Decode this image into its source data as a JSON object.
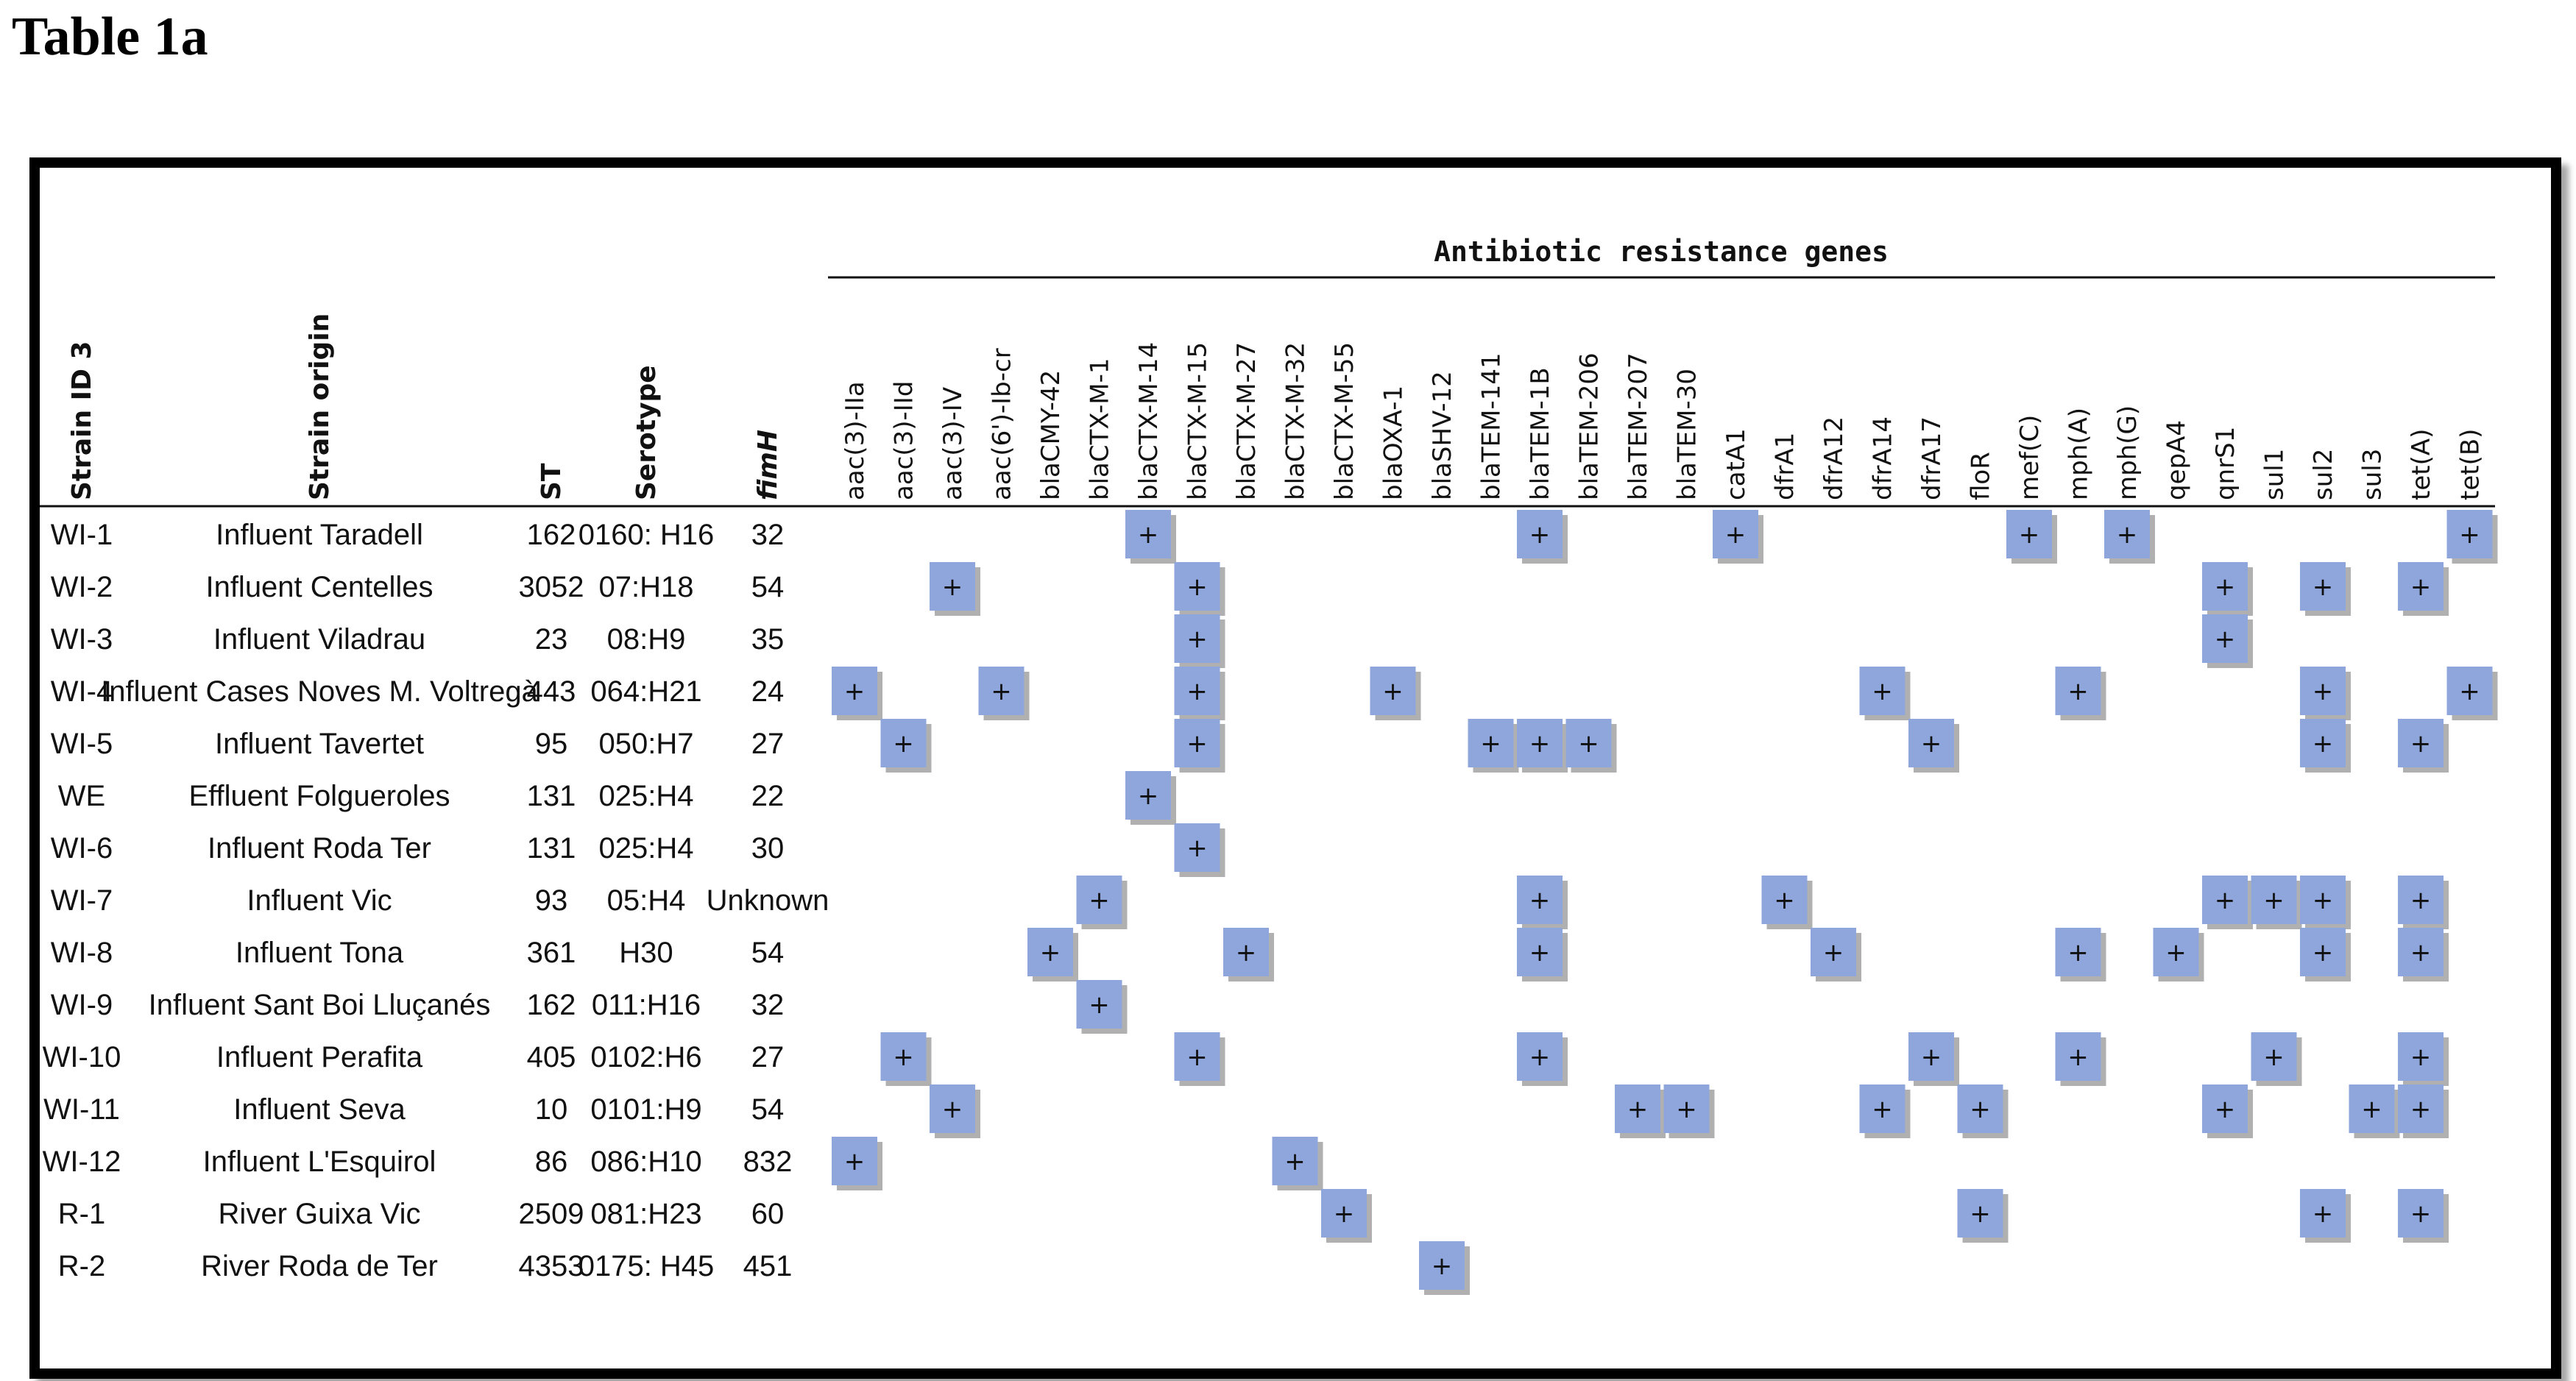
{
  "title": "Table 1a",
  "group_header": "Antibiotic resistance genes",
  "left_headers": {
    "strain_id": "Strain ID 3",
    "strain_origin": "Strain origin",
    "st": "ST",
    "serotype": "Serotype",
    "fimh": "fimH"
  },
  "genes": [
    "aac(3)-IIa",
    "aac(3)-IId",
    "aac(3)-IV",
    "aac(6')-Ib-cr",
    "blaCMY-42",
    "blaCTX-M-1",
    "blaCTX-M-14",
    "blaCTX-M-15",
    "blaCTX-M-27",
    "blaCTX-M-32",
    "blaCTX-M-55",
    "blaOXA-1",
    "blaSHV-12",
    "blaTEM-141",
    "blaTEM-1B",
    "blaTEM-206",
    "blaTEM-207",
    "blaTEM-30",
    "catA1",
    "dfrA1",
    "dfrA12",
    "dfrA14",
    "dfrA17",
    "floR",
    "mef(C)",
    "mph(A)",
    "mph(G)",
    "qepA4",
    "qnrS1",
    "sul1",
    "sul2",
    "sul3",
    "tet(A)",
    "tet(B)"
  ],
  "plus_symbol": "+",
  "rows": [
    {
      "id": "WI-1",
      "origin": "Influent Taradell",
      "st": "162",
      "serotype": "0160: H16",
      "fimh": "32",
      "genes": [
        "blaCTX-M-14",
        "blaTEM-1B",
        "catA1",
        "mef(C)",
        "mph(G)",
        "tet(B)"
      ]
    },
    {
      "id": "WI-2",
      "origin": "Influent Centelles",
      "st": "3052",
      "serotype": "07:H18",
      "fimh": "54",
      "genes": [
        "aac(3)-IV",
        "blaCTX-M-15",
        "qnrS1",
        "sul2",
        "tet(A)"
      ]
    },
    {
      "id": "WI-3",
      "origin": "Influent Viladrau",
      "st": "23",
      "serotype": "08:H9",
      "fimh": "35",
      "genes": [
        "blaCTX-M-15",
        "qnrS1"
      ]
    },
    {
      "id": "WI-4",
      "origin": "Influent Cases Noves M. Voltregà",
      "st": "443",
      "serotype": "064:H21",
      "fimh": "24",
      "genes": [
        "aac(3)-IIa",
        "aac(6')-Ib-cr",
        "blaCTX-M-15",
        "blaOXA-1",
        "dfrA14",
        "mph(A)",
        "sul2",
        "tet(B)"
      ]
    },
    {
      "id": "WI-5",
      "origin": "Influent Tavertet",
      "st": "95",
      "serotype": "050:H7",
      "fimh": "27",
      "genes": [
        "aac(3)-IId",
        "blaCTX-M-15",
        "blaTEM-141",
        "blaTEM-1B",
        "blaTEM-206",
        "dfrA17",
        "sul2",
        "tet(A)"
      ]
    },
    {
      "id": "WE",
      "origin": "Effluent Folgueroles",
      "st": "131",
      "serotype": "025:H4",
      "fimh": "22",
      "genes": [
        "blaCTX-M-14"
      ]
    },
    {
      "id": "WI-6",
      "origin": "Influent Roda Ter",
      "st": "131",
      "serotype": "025:H4",
      "fimh": "30",
      "genes": [
        "blaCTX-M-15"
      ]
    },
    {
      "id": "WI-7",
      "origin": "Influent Vic",
      "st": "93",
      "serotype": "05:H4",
      "fimh": "Unknown",
      "genes": [
        "blaCTX-M-1",
        "blaTEM-1B",
        "dfrA1",
        "qnrS1",
        "sul1",
        "sul2",
        "tet(A)"
      ]
    },
    {
      "id": "WI-8",
      "origin": "Influent Tona",
      "st": "361",
      "serotype": "H30",
      "fimh": "54",
      "genes": [
        "blaCMY-42",
        "blaCTX-M-27",
        "blaTEM-1B",
        "dfrA12",
        "mph(A)",
        "qepA4",
        "sul2",
        "tet(A)"
      ]
    },
    {
      "id": "WI-9",
      "origin": "Influent Sant Boi Lluçanés",
      "st": "162",
      "serotype": "011:H16",
      "fimh": "32",
      "genes": [
        "blaCTX-M-1"
      ]
    },
    {
      "id": "WI-10",
      "origin": "Influent Perafita",
      "st": "405",
      "serotype": "0102:H6",
      "fimh": "27",
      "genes": [
        "aac(3)-IId",
        "blaCTX-M-15",
        "blaTEM-1B",
        "dfrA17",
        "mph(A)",
        "sul1",
        "tet(A)"
      ]
    },
    {
      "id": "WI-11",
      "origin": "Influent Seva",
      "st": "10",
      "serotype": "0101:H9",
      "fimh": "54",
      "genes": [
        "aac(3)-IV",
        "blaTEM-207",
        "blaTEM-30",
        "dfrA14",
        "floR",
        "qnrS1",
        "sul3",
        "tet(A)"
      ]
    },
    {
      "id": "WI-12",
      "origin": "Influent L'Esquirol",
      "st": "86",
      "serotype": "086:H10",
      "fimh": "832",
      "genes": [
        "aac(3)-IIa",
        "blaCTX-M-32"
      ]
    },
    {
      "id": "R-1",
      "origin": "River Guixa Vic",
      "st": "2509",
      "serotype": "081:H23",
      "fimh": "60",
      "genes": [
        "blaCTX-M-55",
        "floR",
        "sul2",
        "tet(A)"
      ]
    },
    {
      "id": "R-2",
      "origin": "River Roda de Ter",
      "st": "4353",
      "serotype": "0175: H45",
      "fimh": "451",
      "genes": [
        "blaSHV-12"
      ]
    }
  ]
}
